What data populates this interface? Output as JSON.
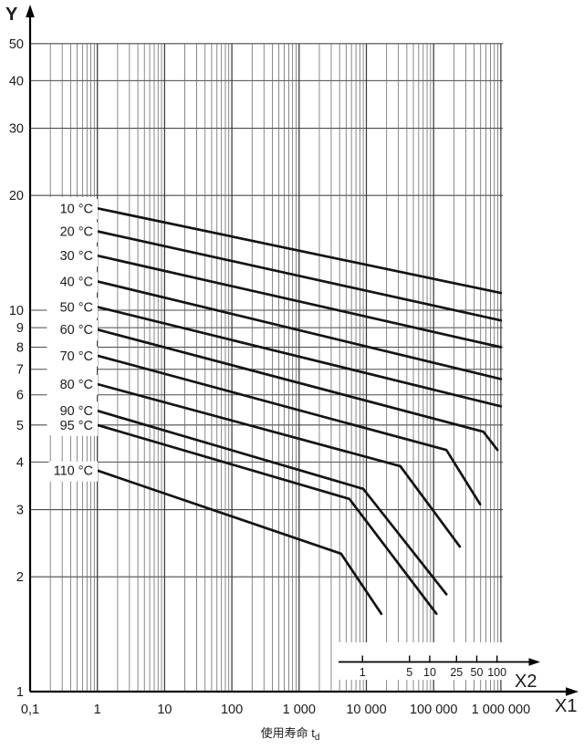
{
  "figure": {
    "y_axis_letter": "Y",
    "x1_axis_letter": "X1",
    "x2_axis_letter": "X2",
    "x_title_cjk": "使用寿命",
    "x_title_symbol": "t",
    "x_title_subscript": "d"
  },
  "chart_data": {
    "type": "line",
    "title": "",
    "description": "Log-log regression curves of hoop stress (Y) versus service life (X1, hours) for temperatures 10-110 °C, with secondary axis X2 in years",
    "x_axis": {
      "name": "X1",
      "scale": "log",
      "min": 0.1,
      "max": 1000000,
      "tick_values": [
        0.1,
        1,
        10,
        100,
        1000,
        10000,
        100000,
        1000000
      ],
      "tick_labels": [
        "0,1",
        "1",
        "10",
        "100",
        "1 000",
        "10 000",
        "100 000",
        "1 000 000"
      ],
      "title": "使用寿命 td"
    },
    "y_axis": {
      "name": "Y",
      "scale": "log",
      "min": 1,
      "max": 50,
      "tick_values": [
        1,
        2,
        3,
        4,
        5,
        6,
        7,
        8,
        9,
        10,
        20,
        30,
        40,
        50
      ],
      "tick_labels": [
        "1",
        "2",
        "3",
        "4",
        "5",
        "6",
        "7",
        "8",
        "9",
        "10",
        "20",
        "30",
        "40",
        "50"
      ]
    },
    "x2_axis": {
      "name": "X2",
      "unit": "years",
      "hours_per_year": 8760,
      "tick_values_years": [
        1,
        5,
        10,
        25,
        50,
        100
      ],
      "tick_labels": [
        "1",
        "5",
        "10",
        "25",
        "50",
        "100"
      ]
    },
    "grid": true,
    "legend_position": "inline-left-labels",
    "series": [
      {
        "name": "10 °C",
        "points": [
          [
            1,
            18.5
          ],
          [
            1000000,
            11.1
          ]
        ]
      },
      {
        "name": "20 °C",
        "points": [
          [
            1,
            16.1
          ],
          [
            1000000,
            9.4
          ]
        ]
      },
      {
        "name": "30 °C",
        "points": [
          [
            1,
            13.9
          ],
          [
            1000000,
            8.0
          ]
        ]
      },
      {
        "name": "40 °C",
        "points": [
          [
            1,
            11.9
          ],
          [
            1000000,
            6.6
          ]
        ]
      },
      {
        "name": "50 °C",
        "points": [
          [
            1,
            10.2
          ],
          [
            1000000,
            5.6
          ]
        ]
      },
      {
        "name": "60 °C",
        "points": [
          [
            1,
            8.9
          ],
          [
            550000,
            4.8
          ],
          [
            890000,
            4.3
          ]
        ]
      },
      {
        "name": "70 °C",
        "points": [
          [
            1,
            7.6
          ],
          [
            155000,
            4.3
          ],
          [
            490000,
            3.1
          ]
        ]
      },
      {
        "name": "80 °C",
        "points": [
          [
            1,
            6.4
          ],
          [
            32000,
            3.9
          ],
          [
            245000,
            2.4
          ]
        ]
      },
      {
        "name": "90 °C",
        "points": [
          [
            1,
            5.45
          ],
          [
            9000,
            3.4
          ],
          [
            155000,
            1.8
          ]
        ]
      },
      {
        "name": "95 °C",
        "points": [
          [
            1,
            5.0
          ],
          [
            5600,
            3.2
          ],
          [
            110000,
            1.6
          ]
        ]
      },
      {
        "name": "110 °C",
        "points": [
          [
            1,
            3.8
          ],
          [
            4200,
            2.3
          ],
          [
            16700,
            1.6
          ]
        ]
      }
    ],
    "colors": {
      "curve": "#141414",
      "grid_major": "#3a3a3a",
      "grid_minor": "#6c6c6c",
      "grid_horizontal": "#4a4a4a",
      "axis": "#000000",
      "background": "#ffffff"
    }
  }
}
